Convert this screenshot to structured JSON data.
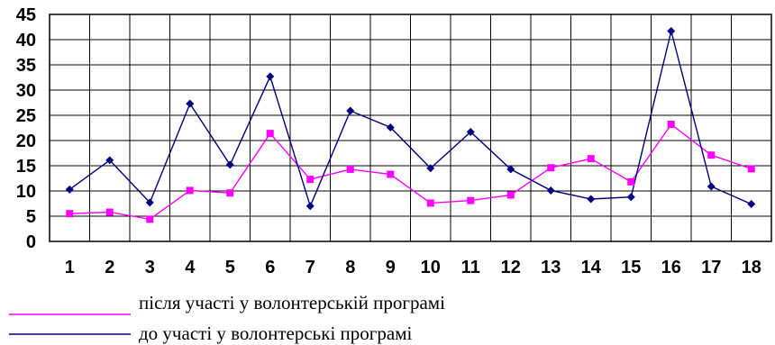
{
  "chart_data": {
    "type": "line",
    "title": "",
    "xlabel": "",
    "ylabel": "",
    "categories": [
      "1",
      "2",
      "3",
      "4",
      "5",
      "6",
      "7",
      "8",
      "9",
      "10",
      "11",
      "12",
      "13",
      "14",
      "15",
      "16",
      "17",
      "18"
    ],
    "ylim": [
      0,
      45
    ],
    "yticks": [
      "0",
      "5",
      "10",
      "15",
      "20",
      "25",
      "30",
      "35",
      "40",
      "45"
    ],
    "grid": true,
    "legend_position": "bottom-left",
    "series": [
      {
        "name": "після участі у волонтерській програмі",
        "color": "#ff00ff",
        "marker": "square",
        "values": [
          5.5,
          5.8,
          4.4,
          10.1,
          9.6,
          21.4,
          12.3,
          14.3,
          13.3,
          7.6,
          8.1,
          9.2,
          14.6,
          16.4,
          11.8,
          23.2,
          17.1,
          14.4
        ]
      },
      {
        "name": "до участі у волонтерські програмі",
        "color": "#000080",
        "marker": "diamond",
        "values": [
          10.3,
          16.1,
          7.7,
          27.3,
          15.2,
          32.7,
          7.0,
          25.9,
          22.6,
          14.5,
          21.7,
          14.3,
          10.1,
          8.4,
          8.8,
          41.7,
          10.9,
          7.4
        ]
      }
    ]
  }
}
